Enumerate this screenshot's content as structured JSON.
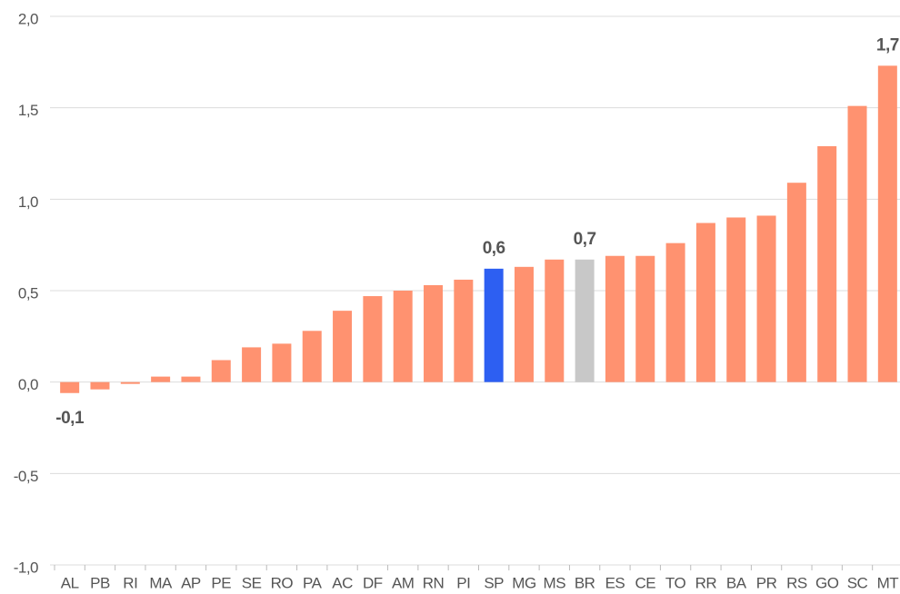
{
  "chart_data": {
    "type": "bar",
    "categories": [
      "AL",
      "PB",
      "RI",
      "MA",
      "AP",
      "PE",
      "SE",
      "RO",
      "PA",
      "AC",
      "DF",
      "AM",
      "RN",
      "PI",
      "SP",
      "MG",
      "MS",
      "BR",
      "ES",
      "CE",
      "TO",
      "RR",
      "BA",
      "PR",
      "RS",
      "GO",
      "SC",
      "MT"
    ],
    "values": [
      -0.06,
      -0.04,
      -0.01,
      0.03,
      0.03,
      0.12,
      0.19,
      0.21,
      0.28,
      0.39,
      0.47,
      0.5,
      0.53,
      0.56,
      0.62,
      0.63,
      0.67,
      0.67,
      0.69,
      0.69,
      0.76,
      0.87,
      0.9,
      0.91,
      1.09,
      1.29,
      1.51,
      1.73
    ],
    "value_labels": [
      "-0,1",
      null,
      null,
      null,
      null,
      null,
      null,
      null,
      null,
      null,
      null,
      null,
      null,
      null,
      "0,6",
      null,
      null,
      "0,7",
      null,
      null,
      null,
      null,
      null,
      null,
      null,
      null,
      null,
      "1,7"
    ],
    "colors": [
      "#ff9270",
      "#ff9270",
      "#ff9270",
      "#ff9270",
      "#ff9270",
      "#ff9270",
      "#ff9270",
      "#ff9270",
      "#ff9270",
      "#ff9270",
      "#ff9270",
      "#ff9270",
      "#ff9270",
      "#ff9270",
      "#2d5ff2",
      "#ff9270",
      "#ff9270",
      "#c8c8c8",
      "#ff9270",
      "#ff9270",
      "#ff9270",
      "#ff9270",
      "#ff9270",
      "#ff9270",
      "#ff9270",
      "#ff9270",
      "#ff9270",
      "#ff9270"
    ],
    "ylim": [
      -1,
      2
    ],
    "yticks": [
      {
        "value": -1,
        "label": "-1,0"
      },
      {
        "value": -0.5,
        "label": "-0,5"
      },
      {
        "value": 0,
        "label": "0,0"
      },
      {
        "value": 0.5,
        "label": "0,5"
      },
      {
        "value": 1,
        "label": "1,0"
      },
      {
        "value": 1.5,
        "label": "1,5"
      },
      {
        "value": 2,
        "label": "2,0"
      }
    ],
    "grid": true
  }
}
